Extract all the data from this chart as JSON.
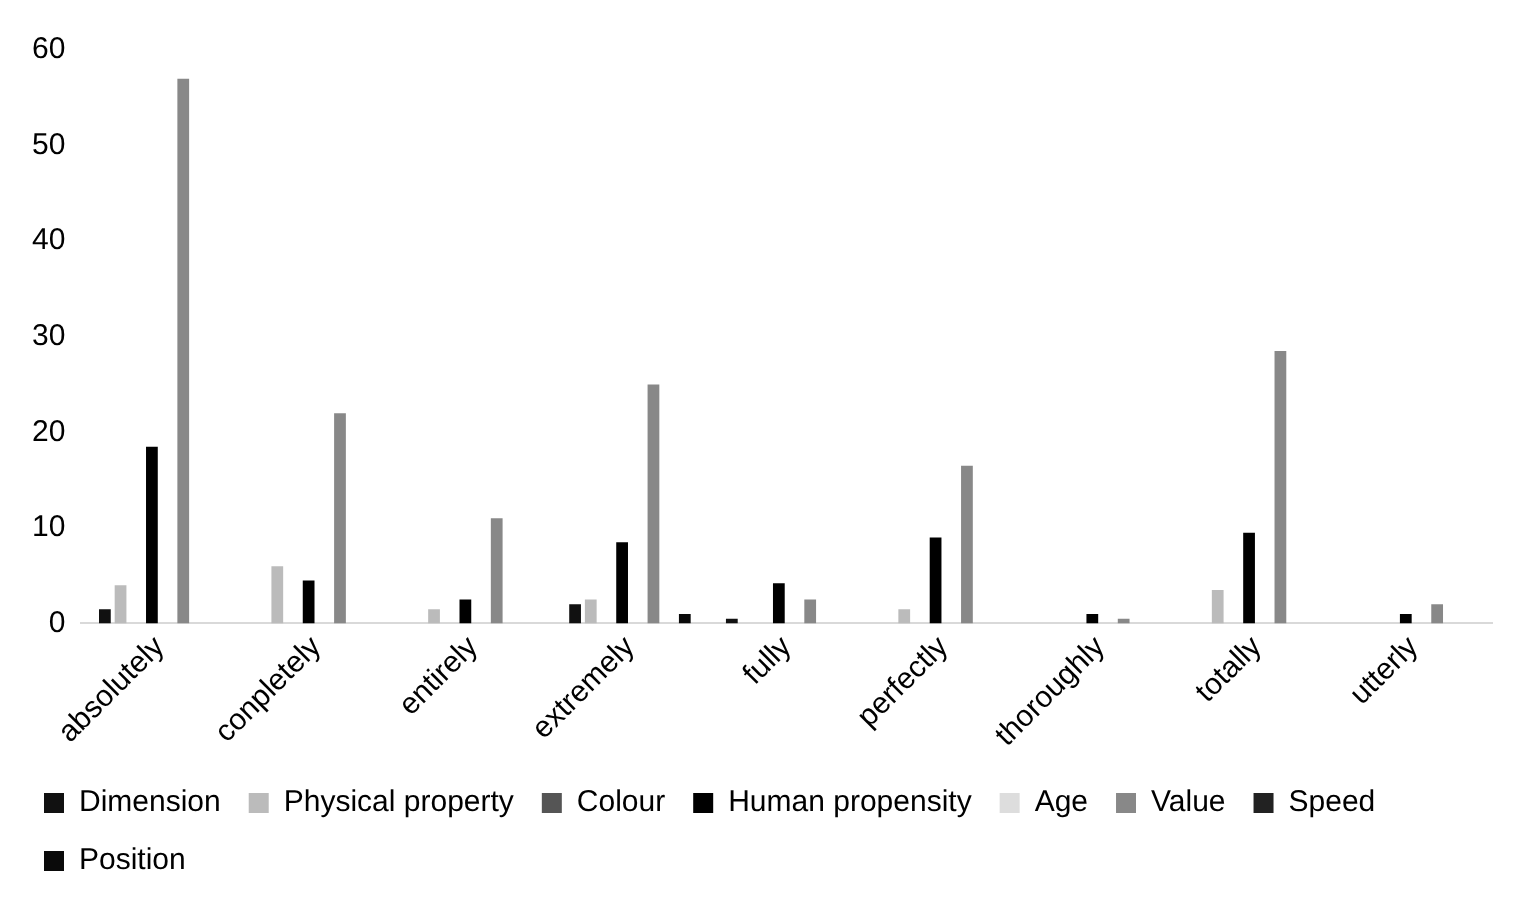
{
  "chart_data": {
    "type": "bar",
    "categories": [
      "absolutely",
      "conpletely",
      "entirely",
      "extremely",
      "fully",
      "perfectly",
      "thoroughly",
      "totally",
      "utterly"
    ],
    "series": [
      {
        "name": "Dimension",
        "color": "#111111",
        "values": [
          1.5,
          0,
          0,
          2,
          0.5,
          0,
          0,
          0,
          0
        ]
      },
      {
        "name": "Physical property",
        "color": "#bbbbbb",
        "values": [
          4,
          6,
          1.5,
          2.5,
          0,
          1.5,
          0,
          3.5,
          0
        ]
      },
      {
        "name": "Colour",
        "color": "#555555",
        "values": [
          0,
          0,
          0,
          0,
          0,
          0,
          0,
          0,
          0
        ]
      },
      {
        "name": "Human propensity",
        "color": "#000000",
        "values": [
          18.5,
          4.5,
          2.5,
          8.5,
          4.2,
          9,
          1,
          9.5,
          1
        ]
      },
      {
        "name": "Age",
        "color": "#dddddd",
        "values": [
          0,
          0,
          0,
          0,
          0,
          0,
          0,
          0,
          0
        ]
      },
      {
        "name": "Value",
        "color": "#888888",
        "values": [
          57,
          22,
          11,
          25,
          2.5,
          16.5,
          0.5,
          28.5,
          2
        ]
      },
      {
        "name": "Speed",
        "color": "#222222",
        "values": [
          0,
          0,
          0,
          0,
          0,
          0,
          0,
          0,
          0
        ]
      },
      {
        "name": "Position",
        "color": "#0a0a0a",
        "values": [
          0,
          0,
          0,
          1,
          0,
          0,
          0,
          0,
          0
        ]
      }
    ],
    "ylim": [
      0,
      60
    ],
    "yticks": [
      0,
      10,
      20,
      30,
      40,
      50,
      60
    ],
    "grid": false,
    "legend": "bottom"
  }
}
